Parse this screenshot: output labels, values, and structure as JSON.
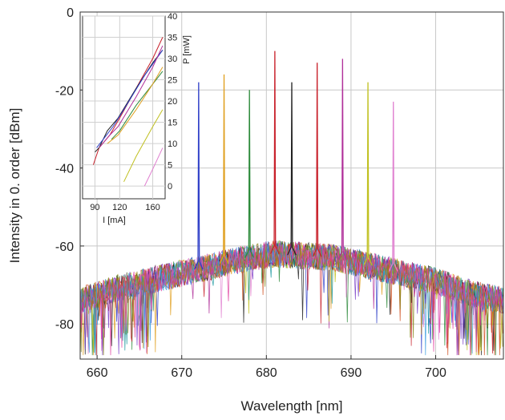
{
  "chart_data": [
    {
      "type": "line",
      "title": "",
      "xlabel": "Wavelength [nm]",
      "ylabel": "Intensity in 0. order [dBm]",
      "xlim": [
        658,
        708
      ],
      "ylim": [
        -89,
        0
      ],
      "xticks": [
        660,
        670,
        680,
        690,
        700
      ],
      "yticks": [
        0,
        -20,
        -40,
        -60,
        -80
      ],
      "grid": true,
      "legend": "none",
      "background_noise": {
        "wavelengths": [
          658,
          662,
          666,
          670,
          674,
          678,
          681,
          684,
          688,
          692,
          696,
          700,
          704,
          708
        ],
        "mean_dBm": [
          -74,
          -71,
          -69,
          -67,
          -65,
          -63,
          -62,
          -62.5,
          -63,
          -65,
          -67,
          -69,
          -72,
          -74
        ],
        "spread_dBm": 7,
        "traces": 14
      },
      "peaks": [
        {
          "wavelength": 672.0,
          "peak_dBm": -18,
          "color": "#2f3fc8"
        },
        {
          "wavelength": 675.0,
          "peak_dBm": -16,
          "color": "#e0a020"
        },
        {
          "wavelength": 678.0,
          "peak_dBm": -20,
          "color": "#2e8b3c"
        },
        {
          "wavelength": 681.0,
          "peak_dBm": -10,
          "color": "#c8202a"
        },
        {
          "wavelength": 683.0,
          "peak_dBm": -18,
          "color": "#222222"
        },
        {
          "wavelength": 686.0,
          "peak_dBm": -13,
          "color": "#c8202a"
        },
        {
          "wavelength": 689.0,
          "peak_dBm": -12,
          "color": "#b0309a"
        },
        {
          "wavelength": 692.0,
          "peak_dBm": -18,
          "color": "#c0c020"
        },
        {
          "wavelength": 695.0,
          "peak_dBm": -23,
          "color": "#e080d0"
        }
      ],
      "trace_colors": [
        "#2f3fc8",
        "#e0a020",
        "#2e8b3c",
        "#c8202a",
        "#222222",
        "#b0309a",
        "#c0c020",
        "#e080d0",
        "#1e9aa0",
        "#7a3fc8",
        "#d05020",
        "#3fa0e0",
        "#8a8a20",
        "#e040a0"
      ]
    },
    {
      "type": "line",
      "title": "",
      "xlabel": "I [mA]",
      "ylabel": "P [mW]",
      "xlim": [
        75,
        175
      ],
      "ylim": [
        -3,
        40
      ],
      "xticks": [
        90,
        120,
        160
      ],
      "yticks": [
        0,
        5,
        10,
        15,
        20,
        25,
        30,
        35,
        40
      ],
      "grid": true,
      "legend": "none",
      "series": [
        {
          "color": "#c8202a",
          "x": [
            88,
            95,
            108,
            120,
            140,
            160,
            172
          ],
          "y": [
            5,
            9,
            12,
            16,
            23,
            30,
            35
          ]
        },
        {
          "color": "#222222",
          "x": [
            90,
            95,
            105,
            118,
            140,
            160,
            172
          ],
          "y": [
            8,
            9,
            13,
            16,
            23,
            29,
            32
          ]
        },
        {
          "color": "#2f3fc8",
          "x": [
            92,
            100,
            112,
            125,
            150,
            172
          ],
          "y": [
            9,
            11,
            14,
            18,
            26,
            32
          ]
        },
        {
          "color": "#b0309a",
          "x": [
            95,
            108,
            118,
            140,
            160,
            172
          ],
          "y": [
            9,
            12,
            14,
            21,
            28,
            33
          ]
        },
        {
          "color": "#2e8b3c",
          "x": [
            110,
            120,
            140,
            160,
            172
          ],
          "y": [
            11,
            13,
            19,
            24,
            27
          ]
        },
        {
          "color": "#e0a020",
          "x": [
            105,
            118,
            140,
            160,
            172
          ],
          "y": [
            10,
            12,
            18,
            24,
            28
          ]
        },
        {
          "color": "#c0c020",
          "x": [
            125,
            140,
            160,
            172
          ],
          "y": [
            1,
            7,
            14,
            18
          ]
        },
        {
          "color": "#e080d0",
          "x": [
            150,
            160,
            172
          ],
          "y": [
            0,
            4,
            9
          ]
        }
      ]
    }
  ]
}
